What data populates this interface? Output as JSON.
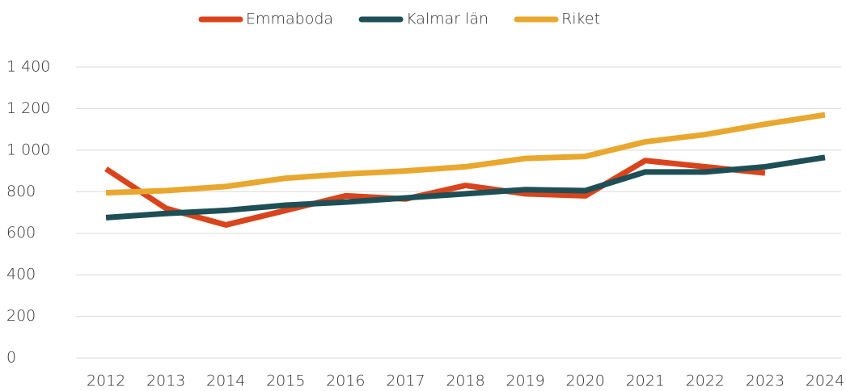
{
  "chart_data": {
    "type": "line",
    "categories": [
      "2012",
      "2013",
      "2014",
      "2015",
      "2016",
      "2017",
      "2018",
      "2019",
      "2020",
      "2021",
      "2022",
      "2023",
      "2024"
    ],
    "series": [
      {
        "name": "Emmaboda",
        "color": "#d9441c",
        "values": [
          910,
          720,
          640,
          710,
          780,
          765,
          830,
          790,
          780,
          950,
          920,
          890,
          null
        ]
      },
      {
        "name": "Kalmar län",
        "color": "#1f4f56",
        "values": [
          675,
          695,
          710,
          735,
          750,
          770,
          790,
          810,
          805,
          895,
          895,
          920,
          965
        ]
      },
      {
        "name": "Riket",
        "color": "#e8a82f",
        "values": [
          795,
          805,
          825,
          865,
          885,
          900,
          920,
          960,
          970,
          1040,
          1075,
          1125,
          1170
        ]
      }
    ],
    "ylim": [
      0,
      1400
    ],
    "yticks": [
      0,
      200,
      400,
      600,
      800,
      {
        "value": 1000,
        "label": "1 000"
      },
      {
        "value": 1200,
        "label": "1 200"
      },
      {
        "value": 1400,
        "label": "1 400"
      }
    ],
    "grid": true,
    "legend": "top"
  }
}
